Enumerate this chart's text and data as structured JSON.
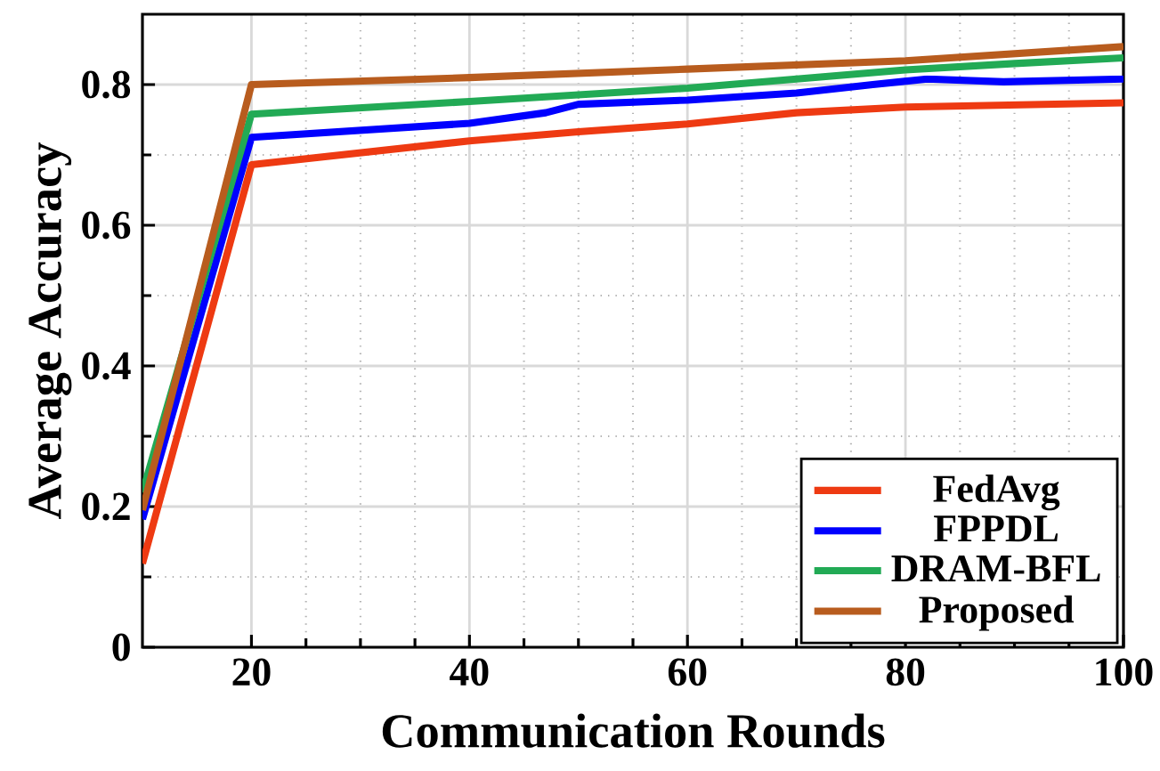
{
  "chart_data": {
    "type": "line",
    "xlabel": "Communication Rounds",
    "ylabel": "Average Accuracy",
    "xlim": [
      10,
      100
    ],
    "ylim": [
      0,
      0.9
    ],
    "xticks": [
      20,
      40,
      60,
      80,
      100
    ],
    "yticks": [
      0,
      0.2,
      0.4,
      0.6,
      0.8
    ],
    "grid": true,
    "legend": "bottom right",
    "marker": "none",
    "line_style": "solid",
    "series": [
      {
        "name": "FedAvg",
        "color": "#ee3a12",
        "x": [
          10,
          20,
          40,
          50,
          60,
          70,
          80,
          100
        ],
        "values": [
          0.119,
          0.686,
          0.72,
          0.733,
          0.744,
          0.76,
          0.768,
          0.774
        ]
      },
      {
        "name": "FPPDL",
        "color": "#0000ff",
        "x": [
          10,
          20,
          40,
          47,
          50,
          60,
          70,
          77,
          82,
          89,
          100
        ],
        "values": [
          0.182,
          0.725,
          0.745,
          0.76,
          0.772,
          0.778,
          0.788,
          0.8,
          0.808,
          0.804,
          0.808
        ]
      },
      {
        "name": "DRAM-BFL",
        "color": "#22aa55",
        "x": [
          10,
          20,
          40,
          60,
          80,
          90,
          100
        ],
        "values": [
          0.22,
          0.758,
          0.776,
          0.795,
          0.821,
          0.83,
          0.838
        ]
      },
      {
        "name": "Proposed",
        "color": "#b85c1e",
        "x": [
          10,
          20,
          40,
          60,
          80,
          100
        ],
        "values": [
          0.195,
          0.8,
          0.81,
          0.822,
          0.834,
          0.854
        ]
      }
    ]
  }
}
